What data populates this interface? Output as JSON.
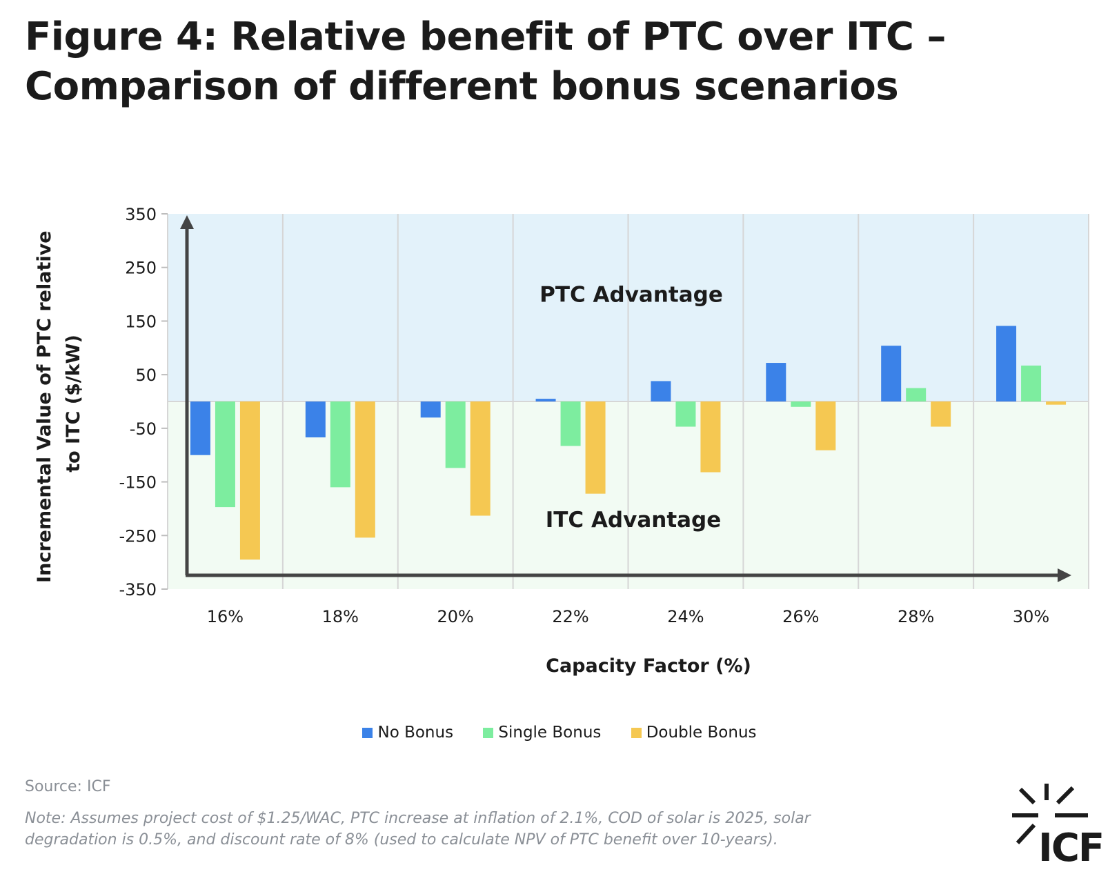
{
  "title": {
    "line1": "Figure 4: Relative benefit of PTC over ITC –",
    "line2": "Comparison of different bonus scenarios"
  },
  "chart_data": {
    "type": "bar",
    "categories": [
      "16%",
      "18%",
      "20%",
      "22%",
      "24%",
      "26%",
      "28%",
      "30%"
    ],
    "series": [
      {
        "name": "No Bonus",
        "color": "#3b82e8",
        "values": [
          -100,
          -67,
          -30,
          5,
          38,
          72,
          104,
          141
        ]
      },
      {
        "name": "Single Bonus",
        "color": "#7ded9f",
        "values": [
          -197,
          -160,
          -124,
          -83,
          -47,
          -10,
          25,
          67
        ]
      },
      {
        "name": "Double Bonus",
        "color": "#f5c852",
        "values": [
          -295,
          -254,
          -213,
          -172,
          -132,
          -91,
          -47,
          -6
        ]
      }
    ],
    "xlabel": "Capacity Factor (%)",
    "ylabel_line1": "Incremental Value of PTC relative",
    "ylabel_line2": "to ITC ($/kW)",
    "ylim": [
      -350,
      350
    ],
    "yticks": [
      "350",
      "250",
      "150",
      "50",
      "-50",
      "-150",
      "-250",
      "-350"
    ],
    "ytick_values": [
      350,
      250,
      150,
      50,
      -50,
      -150,
      -250,
      -350
    ],
    "annotations": {
      "top": "PTC Advantage",
      "bottom": "ITC Advantage"
    },
    "region_colors": {
      "positive": "#e3f2fa",
      "negative": "#f2fbf3"
    },
    "grid": true,
    "legend_position": "bottom"
  },
  "source": "Source: ICF",
  "note": "Note: Assumes project cost of $1.25/WAC, PTC increase at inflation of 2.1%, COD of solar is 2025, solar degradation is 0.5%, and discount rate of 8% (used to calculate NPV of PTC benefit over 10-years).",
  "logo": {
    "text": "ICF",
    "icon": "icf-sunburst-logo"
  }
}
